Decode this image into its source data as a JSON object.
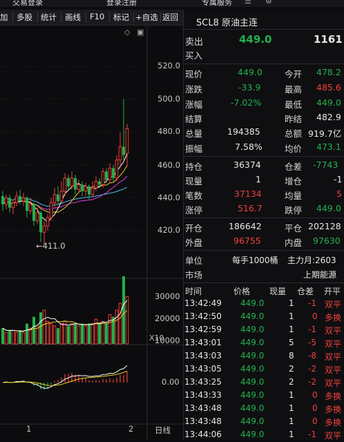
{
  "topbar": {
    "login_label": "交易登录",
    "register_label": "登录注册",
    "service_label": "专属服务"
  },
  "toolbar": {
    "items": [
      "加",
      "多股",
      "统计",
      "画线",
      "F10",
      "标记",
      "+自选",
      "返回"
    ]
  },
  "chart": {
    "price_axis": [
      "520.0",
      "500.0",
      "480.0",
      "460.0",
      "440.0",
      "420.0"
    ],
    "low_marker": "411.0",
    "volume_axis": [
      "30000",
      "20000",
      "10000"
    ],
    "volume_unit": "X10",
    "macd_axis": "0.00",
    "date_marks": [
      "1",
      "2"
    ],
    "period_label": "日线",
    "candles": [
      {
        "o": 441,
        "c": 436,
        "h": 444,
        "l": 432
      },
      {
        "o": 436,
        "c": 440,
        "h": 442,
        "l": 433
      },
      {
        "o": 440,
        "c": 434,
        "h": 442,
        "l": 431
      },
      {
        "o": 434,
        "c": 437,
        "h": 439,
        "l": 430
      },
      {
        "o": 437,
        "c": 441,
        "h": 444,
        "l": 435
      },
      {
        "o": 441,
        "c": 438,
        "h": 445,
        "l": 436
      },
      {
        "o": 438,
        "c": 440,
        "h": 443,
        "l": 435
      },
      {
        "o": 440,
        "c": 432,
        "h": 441,
        "l": 428
      },
      {
        "o": 432,
        "c": 436,
        "h": 440,
        "l": 430
      },
      {
        "o": 436,
        "c": 426,
        "h": 437,
        "l": 423
      },
      {
        "o": 426,
        "c": 431,
        "h": 434,
        "l": 424
      },
      {
        "o": 431,
        "c": 419,
        "h": 432,
        "l": 413
      },
      {
        "o": 419,
        "c": 423,
        "h": 426,
        "l": 411
      },
      {
        "o": 423,
        "c": 428,
        "h": 430,
        "l": 420
      },
      {
        "o": 428,
        "c": 437,
        "h": 440,
        "l": 426
      },
      {
        "o": 437,
        "c": 442,
        "h": 446,
        "l": 434
      },
      {
        "o": 442,
        "c": 438,
        "h": 447,
        "l": 436
      },
      {
        "o": 438,
        "c": 444,
        "h": 450,
        "l": 437
      },
      {
        "o": 444,
        "c": 452,
        "h": 455,
        "l": 441
      },
      {
        "o": 452,
        "c": 447,
        "h": 454,
        "l": 444
      },
      {
        "o": 447,
        "c": 452,
        "h": 456,
        "l": 445
      },
      {
        "o": 452,
        "c": 445,
        "h": 454,
        "l": 442
      },
      {
        "o": 445,
        "c": 448,
        "h": 451,
        "l": 443
      },
      {
        "o": 448,
        "c": 444,
        "h": 450,
        "l": 441
      },
      {
        "o": 444,
        "c": 447,
        "h": 449,
        "l": 441
      },
      {
        "o": 447,
        "c": 442,
        "h": 448,
        "l": 439
      },
      {
        "o": 442,
        "c": 446,
        "h": 450,
        "l": 441
      },
      {
        "o": 446,
        "c": 450,
        "h": 453,
        "l": 444
      },
      {
        "o": 450,
        "c": 448,
        "h": 452,
        "l": 446
      },
      {
        "o": 448,
        "c": 456,
        "h": 458,
        "l": 446
      },
      {
        "o": 456,
        "c": 451,
        "h": 458,
        "l": 449
      },
      {
        "o": 451,
        "c": 458,
        "h": 461,
        "l": 449
      },
      {
        "o": 458,
        "c": 452,
        "h": 460,
        "l": 450
      },
      {
        "o": 452,
        "c": 463,
        "h": 466,
        "l": 450
      },
      {
        "o": 463,
        "c": 471,
        "h": 480,
        "l": 458
      },
      {
        "o": 471,
        "c": 466,
        "h": 500,
        "l": 463
      },
      {
        "o": 467,
        "c": 482,
        "h": 485,
        "l": 459
      }
    ],
    "volumes": [
      7,
      5,
      6,
      6,
      5,
      6,
      5,
      9,
      7,
      12,
      8,
      14,
      15,
      10,
      9,
      8,
      7,
      9,
      10,
      8,
      9,
      9,
      8,
      9,
      8,
      9,
      9,
      11,
      9,
      10,
      9,
      13,
      12,
      15,
      18,
      30,
      21
    ]
  },
  "quote": {
    "contract": "SCL8 原油主连",
    "sell_label": "卖出",
    "sell_price": "449.0",
    "sell_volume": "1161",
    "buy_label": "买入",
    "latest_label": "现价",
    "latest": "449.0",
    "open_label": "今开",
    "open": "478.2",
    "change_label": "涨跌",
    "change": "-33.9",
    "high_label": "最高",
    "high": "485.6",
    "pct_label": "涨幅",
    "pct": "-7.02%",
    "low_label": "最低",
    "low": "449.0",
    "settle_label": "结算",
    "settle": "",
    "prev_settle_label": "昨结",
    "prev_settle": "482.9",
    "total_vol_label": "总量",
    "total_vol": "194385",
    "amount_label": "总额",
    "amount": "919.7亿",
    "amplitude_label": "振幅",
    "amplitude": "7.58%",
    "avg_label": "均价",
    "avg": "473.1",
    "oi_label": "持仓",
    "oi": "36374",
    "oi_diff_label": "仓差",
    "oi_diff": "-7743",
    "cur_vol_label": "现量",
    "cur_vol": "1",
    "inc_oi_label": "增仓",
    "inc_oi": "-1",
    "deals_label": "笔数",
    "deals": "37134",
    "avg_vol_label": "均量",
    "avg_vol": "5",
    "limit_up_label": "涨停",
    "limit_up": "516.7",
    "limit_down_label": "跌停",
    "limit_down": "449.0",
    "open_pos_label": "开仓",
    "open_pos": "186642",
    "close_pos_label": "平仓",
    "close_pos": "202128",
    "outer_label": "外盘",
    "outer": "96755",
    "inner_label": "内盘",
    "inner": "97630",
    "unit_label": "单位",
    "unit": "每手1000桶",
    "main_month": "主力月:2603",
    "market_label": "市场",
    "market": "上期能源"
  },
  "trades": {
    "headers": [
      "时间",
      "价格",
      "现量",
      "仓差",
      "开平"
    ],
    "rows": [
      {
        "time": "13:42:49",
        "price": "449.0",
        "vol": "1",
        "diff": "-1",
        "type": "双平"
      },
      {
        "time": "13:42:50",
        "price": "449.0",
        "vol": "1",
        "diff": "0",
        "type": "多换"
      },
      {
        "time": "13:42:59",
        "price": "449.0",
        "vol": "1",
        "diff": "-1",
        "type": "双平"
      },
      {
        "time": "13:43:01",
        "price": "449.0",
        "vol": "5",
        "diff": "-5",
        "type": "双平"
      },
      {
        "time": "13:43:03",
        "price": "449.0",
        "vol": "8",
        "diff": "-8",
        "type": "双平"
      },
      {
        "time": "13:43:05",
        "price": "449.0",
        "vol": "2",
        "diff": "-2",
        "type": "双平"
      },
      {
        "time": "13:43:25",
        "price": "449.0",
        "vol": "2",
        "diff": "-2",
        "type": "双平"
      },
      {
        "time": "13:43:33",
        "price": "449.0",
        "vol": "1",
        "diff": "0",
        "type": "多换"
      },
      {
        "time": "13:43:48",
        "price": "449.0",
        "vol": "1",
        "diff": "0",
        "type": "多换"
      },
      {
        "time": "13:43:48",
        "price": "449.0",
        "vol": "1",
        "diff": "0",
        "type": "多换"
      },
      {
        "time": "13:44:06",
        "price": "449.0",
        "vol": "1",
        "diff": "-1",
        "type": "双平"
      }
    ]
  },
  "colors": {
    "up": "#f0403a",
    "down": "#22b14c",
    "ma5": "#ffffff",
    "ma10": "#e8d020",
    "ma20": "#e040e0",
    "ma60": "#50c0f0"
  }
}
